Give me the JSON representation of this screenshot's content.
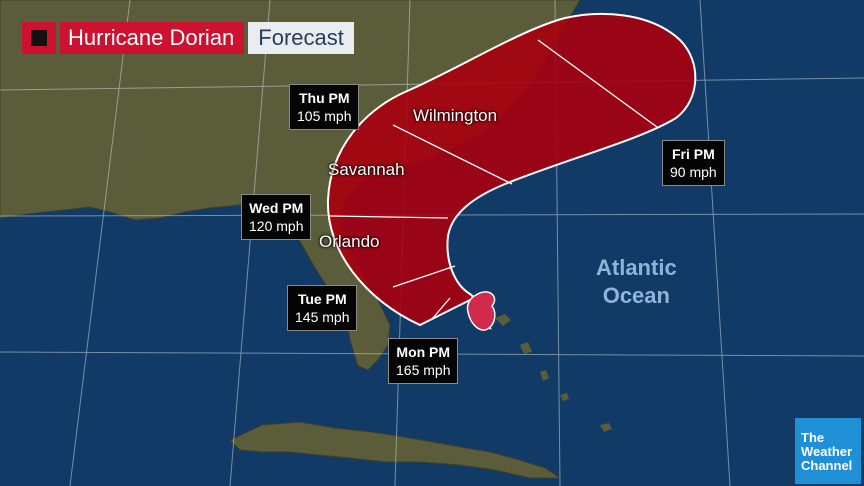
{
  "title": {
    "main": "Hurricane Dorian",
    "sub": "Forecast"
  },
  "cities": {
    "wilmington": "Wilmington",
    "savannah": "Savannah",
    "orlando": "Orlando"
  },
  "forecast_points": {
    "thu": {
      "day": "Thu PM",
      "wind": "105 mph"
    },
    "fri": {
      "day": "Fri PM",
      "wind": "90 mph"
    },
    "wed": {
      "day": "Wed PM",
      "wind": "120 mph"
    },
    "tue": {
      "day": "Tue PM",
      "wind": "145 mph"
    },
    "mon": {
      "day": "Mon PM",
      "wind": "165 mph"
    }
  },
  "ocean": {
    "line1": "Atlantic",
    "line2": "Ocean"
  },
  "logo": {
    "line1": "The",
    "line2": "Weather",
    "line3": "Channel"
  },
  "colors": {
    "cone": "#a8000e",
    "storm": "#d02a4c",
    "ocean": "#123a66",
    "land": "#5a5a37",
    "title": "#cc1230",
    "logo": "#1f8fd6"
  }
}
